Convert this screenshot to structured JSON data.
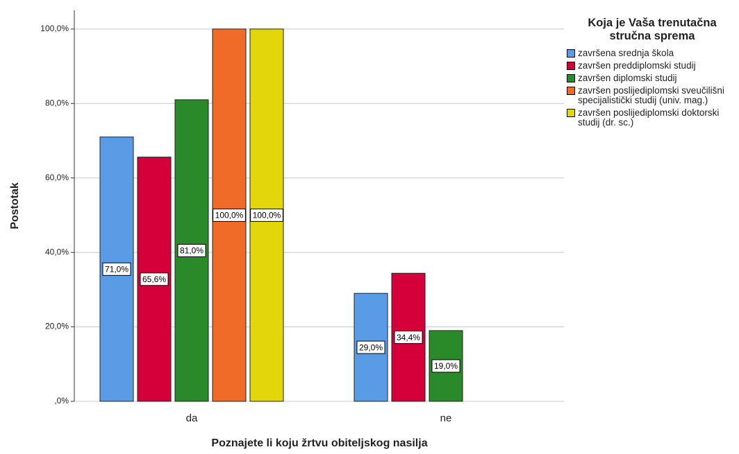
{
  "chart_data": {
    "type": "bar",
    "legend_title": "Koja je Vaša trenutačna stručna sprema",
    "xlabel": "Poznajete li koju žrtvu obiteljskog nasilja",
    "ylabel": "Postotak",
    "categories": [
      "da",
      "ne"
    ],
    "ylim": [
      0,
      105
    ],
    "yticks": [
      {
        "value": 0,
        "label": ",0%"
      },
      {
        "value": 20,
        "label": "20,0%"
      },
      {
        "value": 40,
        "label": "40,0%"
      },
      {
        "value": 60,
        "label": "60,0%"
      },
      {
        "value": 80,
        "label": "80,0%"
      },
      {
        "value": 100,
        "label": "100,0%"
      }
    ],
    "grid": true,
    "legend": "right",
    "series": [
      {
        "name": "završena srednja škola",
        "color": "#5a9be6",
        "values": [
          71.0,
          29.0
        ],
        "value_labels": [
          "71,0%",
          "29,0%"
        ]
      },
      {
        "name": "završen preddiplomski studij",
        "color": "#d5003a",
        "values": [
          65.6,
          34.4
        ],
        "value_labels": [
          "65,6%",
          "34,4%"
        ]
      },
      {
        "name": "završen diplomski studij",
        "color": "#2a8a2a",
        "values": [
          81.0,
          19.0
        ],
        "value_labels": [
          "81,0%",
          "19,0%"
        ]
      },
      {
        "name": "završen poslijediplomski sveučilišni specijalistički studij (univ. mag.)",
        "color": "#f06b28",
        "values": [
          100.0,
          0
        ],
        "value_labels": [
          "100,0%",
          null
        ]
      },
      {
        "name": "završen poslijediplomski doktorski studij (dr. sc.)",
        "color": "#e3d60a",
        "values": [
          100.0,
          0
        ],
        "value_labels": [
          "100,0%",
          null
        ]
      }
    ]
  }
}
